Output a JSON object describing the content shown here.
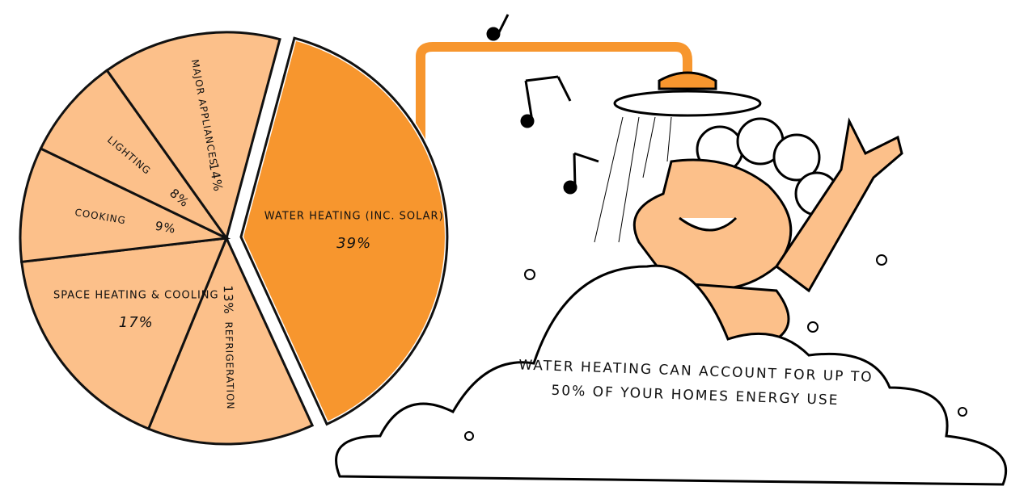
{
  "chart_data": {
    "type": "pie",
    "categories": [
      "WATER HEATING (INC. SOLAR)",
      "REFRIGERATION",
      "SPACE HEATING & COOLING",
      "COOKING",
      "LIGHTING",
      "MAJOR APPLIANCES"
    ],
    "values": [
      39,
      13,
      17,
      9,
      8,
      14
    ],
    "value_labels": [
      "39%",
      "13%",
      "17%",
      "9%",
      "8%",
      "14%"
    ],
    "colors": [
      "#f7962e",
      "#fcc08a",
      "#fcc08a",
      "#fcc08a",
      "#fcc08a",
      "#fcc08a"
    ],
    "exploded": [
      true,
      false,
      false,
      false,
      false,
      false
    ],
    "annotation": "WATER HEATING CAN ACCOUNT FOR UP TO 50% OF YOUR HOMES ENERGY USE"
  }
}
